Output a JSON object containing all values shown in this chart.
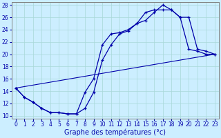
{
  "background_color": "#cceeff",
  "line_color": "#0000aa",
  "xlabel": "Graphe des températures (°c)",
  "xlim": [
    -0.5,
    23.5
  ],
  "ylim": [
    9.5,
    28.5
  ],
  "xticks": [
    0,
    1,
    2,
    3,
    4,
    5,
    6,
    7,
    8,
    9,
    10,
    11,
    12,
    13,
    14,
    15,
    16,
    17,
    18,
    19,
    20,
    21,
    22,
    23
  ],
  "yticks": [
    10,
    12,
    14,
    16,
    18,
    20,
    22,
    24,
    26,
    28
  ],
  "line1_x": [
    0,
    1,
    2,
    3,
    4,
    5,
    6,
    7,
    8,
    9,
    10,
    11,
    12,
    13,
    14,
    15,
    16,
    17,
    18,
    19,
    20,
    21,
    22,
    23
  ],
  "line1_y": [
    14.5,
    13.0,
    12.2,
    11.2,
    10.5,
    10.5,
    10.3,
    10.3,
    13.8,
    16.0,
    21.5,
    23.3,
    23.5,
    24.0,
    25.0,
    25.5,
    26.8,
    28.0,
    27.2,
    26.0,
    20.8,
    20.5,
    20.0,
    20.0
  ],
  "line2_x": [
    0,
    1,
    2,
    3,
    4,
    5,
    6,
    7,
    8,
    9,
    10,
    11,
    12,
    13,
    14,
    15,
    16,
    17,
    18,
    19,
    20,
    21,
    22,
    23
  ],
  "line2_y": [
    14.5,
    13.0,
    12.2,
    11.2,
    10.5,
    10.5,
    10.3,
    10.3,
    11.2,
    13.8,
    19.0,
    21.5,
    23.3,
    23.8,
    25.0,
    26.8,
    27.2,
    27.2,
    27.2,
    26.0,
    26.0,
    20.8,
    20.5,
    20.0
  ],
  "line3_x": [
    0,
    23
  ],
  "line3_y": [
    14.5,
    20.0
  ],
  "figsize": [
    3.2,
    2.0
  ],
  "dpi": 100,
  "tick_fontsize": 5.5,
  "xlabel_fontsize": 7
}
